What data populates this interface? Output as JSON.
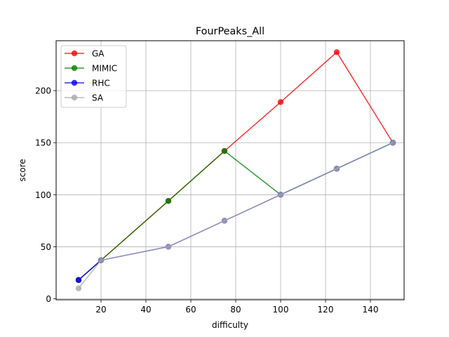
{
  "chart_data": {
    "type": "line",
    "title": "FourPeaks_All",
    "xlabel": "difficulty",
    "ylabel": "score",
    "xlim": [
      0,
      155
    ],
    "ylim": [
      -1,
      248
    ],
    "xticks": [
      20,
      40,
      60,
      80,
      100,
      120,
      140
    ],
    "yticks": [
      0,
      50,
      100,
      150,
      200
    ],
    "grid": true,
    "legend_position": "top-left",
    "series": [
      {
        "name": "GA",
        "color": "#ff0000",
        "x": [
          10,
          20,
          50,
          75,
          100,
          125,
          150
        ],
        "y": [
          18,
          37,
          94,
          142,
          189,
          237,
          150
        ]
      },
      {
        "name": "MIMIC",
        "color": "#008000",
        "x": [
          10,
          20,
          50,
          75,
          100,
          125,
          150
        ],
        "y": [
          18,
          37,
          94,
          142,
          100,
          125,
          150
        ]
      },
      {
        "name": "RHC",
        "color": "#0000ff",
        "x": [
          10,
          20,
          50,
          75,
          100,
          125,
          150
        ],
        "y": [
          18,
          37,
          50,
          75,
          100,
          125,
          150
        ]
      },
      {
        "name": "SA",
        "color": "#a9a9a9",
        "x": [
          10,
          20,
          50,
          75,
          100,
          125,
          150
        ],
        "y": [
          10,
          37,
          50,
          75,
          100,
          125,
          150
        ]
      }
    ]
  }
}
